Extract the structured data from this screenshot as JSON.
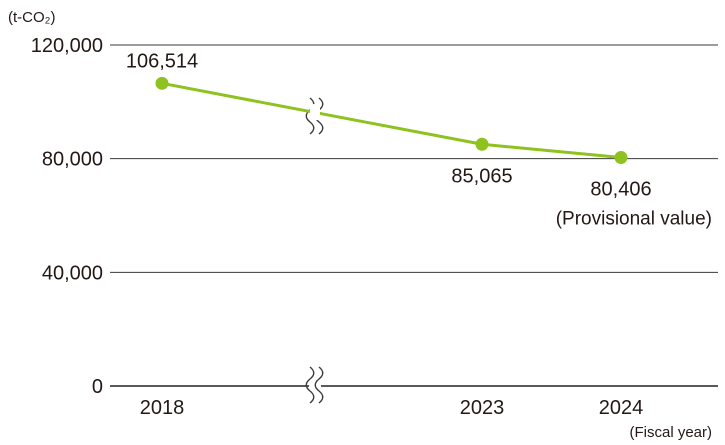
{
  "chart_data": {
    "type": "line",
    "y_unit": "(t-CO₂)",
    "x_unit": "(Fiscal year)",
    "ylim": [
      0,
      120000
    ],
    "y_ticks": [
      {
        "value": 0,
        "label": "0"
      },
      {
        "value": 40000,
        "label": "40,000"
      },
      {
        "value": 80000,
        "label": "80,000"
      },
      {
        "value": 120000,
        "label": "120,000"
      }
    ],
    "grid": true,
    "axis_break": true,
    "series": [
      {
        "color": "#8dc21f",
        "points": [
          {
            "x": "2018",
            "y": 106514,
            "label": "106,514"
          },
          {
            "x": "2023",
            "y": 85065,
            "label": "85,065"
          },
          {
            "x": "2024",
            "y": 80406,
            "label": "80,406",
            "note": "(Provisional value)"
          }
        ]
      }
    ]
  }
}
